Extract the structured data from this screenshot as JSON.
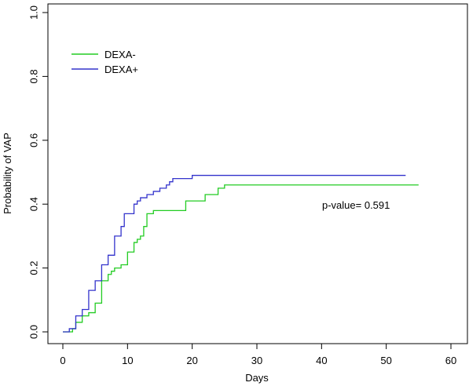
{
  "chart_data": {
    "type": "line",
    "subtype": "step",
    "xlabel": "Days",
    "ylabel": "Probability of VAP",
    "xlim": [
      0,
      60
    ],
    "ylim": [
      0,
      1
    ],
    "x_ticks": [
      "0",
      "10",
      "20",
      "30",
      "40",
      "50",
      "60"
    ],
    "y_ticks": [
      "0.0",
      "0.2",
      "0.4",
      "0.6",
      "0.8",
      "1.0"
    ],
    "grid": false,
    "legend_position": "top-left",
    "annotation": "p-value= 0.591",
    "series": [
      {
        "name": "DEXA-",
        "color": "#22cc22",
        "points": [
          [
            0,
            0
          ],
          [
            1.5,
            0.01
          ],
          [
            2,
            0.03
          ],
          [
            3,
            0.05
          ],
          [
            4,
            0.06
          ],
          [
            5,
            0.09
          ],
          [
            6,
            0.16
          ],
          [
            7,
            0.18
          ],
          [
            7.5,
            0.19
          ],
          [
            8,
            0.2
          ],
          [
            9,
            0.21
          ],
          [
            10,
            0.25
          ],
          [
            10.5,
            0.25
          ],
          [
            11,
            0.28
          ],
          [
            11.5,
            0.29
          ],
          [
            12,
            0.3
          ],
          [
            12.5,
            0.33
          ],
          [
            13,
            0.37
          ],
          [
            14,
            0.38
          ],
          [
            18,
            0.38
          ],
          [
            19,
            0.41
          ],
          [
            22,
            0.43
          ],
          [
            24,
            0.45
          ],
          [
            25,
            0.46
          ],
          [
            55,
            0.46
          ]
        ]
      },
      {
        "name": "DEXA+",
        "color": "#3333cc",
        "points": [
          [
            0,
            0
          ],
          [
            1,
            0.01
          ],
          [
            2,
            0.05
          ],
          [
            3,
            0.07
          ],
          [
            4,
            0.13
          ],
          [
            5,
            0.16
          ],
          [
            6,
            0.21
          ],
          [
            7,
            0.24
          ],
          [
            8,
            0.3
          ],
          [
            9,
            0.33
          ],
          [
            9.5,
            0.37
          ],
          [
            10,
            0.37
          ],
          [
            11,
            0.4
          ],
          [
            11.5,
            0.41
          ],
          [
            12,
            0.42
          ],
          [
            13,
            0.43
          ],
          [
            14,
            0.44
          ],
          [
            15,
            0.45
          ],
          [
            16,
            0.46
          ],
          [
            16.5,
            0.47
          ],
          [
            17,
            0.48
          ],
          [
            20,
            0.49
          ],
          [
            53,
            0.49
          ]
        ]
      }
    ]
  }
}
